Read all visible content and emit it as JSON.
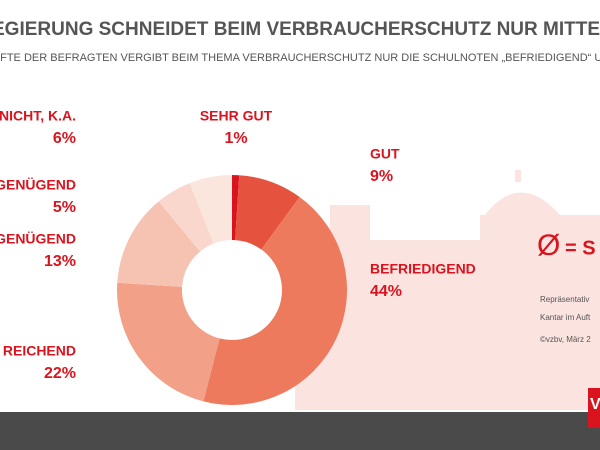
{
  "chart_data": {
    "type": "pie",
    "title": "EGIERUNG SCHNEIDET BEIM VERBRAUCHERSCHUTZ NUR MITTELMÄ",
    "subtitle": "LFTE DER BEFRAGTEN VERGIBT BEIM THEMA VERBRAUCHERSCHUTZ NUR DIE SCHULNOTEN „BEFRIEDIGEND“ UND „",
    "categories": [
      "SEHR GUT",
      "GUT",
      "BEFRIEDIGEND",
      "REICHEND",
      "GENÜGEND",
      "GENÜGEND",
      "NICHT, K.A."
    ],
    "values": [
      1,
      9,
      44,
      22,
      13,
      5,
      6
    ],
    "value_labels": [
      "1%",
      "9%",
      "44%",
      "22%",
      "13%",
      "5%",
      "6%"
    ],
    "colors": [
      "#d9141e",
      "#e5533f",
      "#ee7a5e",
      "#f2a088",
      "#f6c3b2",
      "#f9d7cc",
      "#fbe6de"
    ],
    "average_label": "= S",
    "annotations": [
      "Repräsentativ",
      "Kantar im Auft",
      "©vzbv, März 2"
    ],
    "logo": "V"
  }
}
